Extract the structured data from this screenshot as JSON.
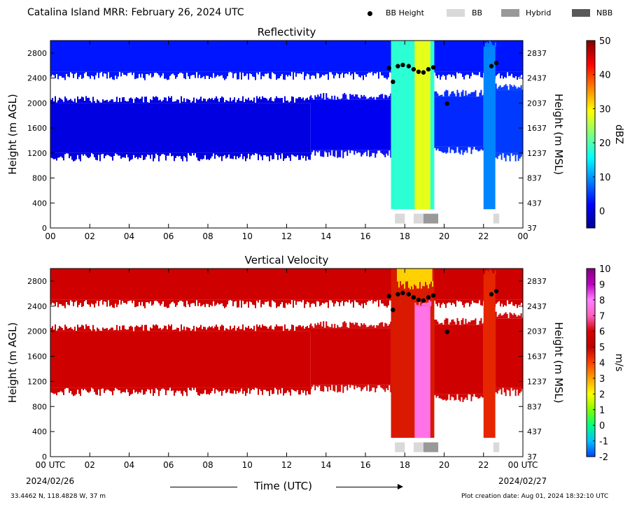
{
  "header": {
    "title": "Catalina Island MRR:  February 26, 2024 UTC",
    "legend": [
      {
        "label": "BB Height",
        "kind": "dot",
        "color": "#000000"
      },
      {
        "label": "BB",
        "kind": "box",
        "color": "#d9d9d9"
      },
      {
        "label": "Hybrid",
        "kind": "box",
        "color": "#999999"
      },
      {
        "label": "NBB",
        "kind": "box",
        "color": "#595959"
      }
    ]
  },
  "footer": {
    "location": "33.4462 N, 118.4828 W, 37 m",
    "creation": "Plot creation date: Aug 01, 2024 18:32:10 UTC",
    "time_label": "Time (UTC)",
    "date_start": "2024/02/26",
    "date_end": "2024/02/27"
  },
  "chart_data": [
    {
      "type": "heatmap",
      "title": "Reflectivity",
      "ylabel": "Height (m AGL)",
      "ylabel_right": "Height (m MSL)",
      "colorbar_label": "dBZ",
      "colorbar_range": [
        -5,
        50
      ],
      "colorbar_ticks": [
        "0",
        "10",
        "20",
        "30",
        "40",
        "50"
      ],
      "colorbar_tick_values": [
        0,
        10,
        20,
        30,
        40,
        50
      ],
      "x_range_hours": [
        0,
        24
      ],
      "xtick_labels": [
        "00",
        "02",
        "04",
        "06",
        "08",
        "10",
        "12",
        "14",
        "16",
        "18",
        "20",
        "22",
        "00"
      ],
      "ylim": [
        0,
        3000
      ],
      "yticks_left": [
        "0",
        "400",
        "800",
        "1200",
        "1600",
        "2000",
        "2400",
        "2800"
      ],
      "ytick_values": [
        0,
        400,
        800,
        1200,
        1600,
        2000,
        2400,
        2800
      ],
      "yticks_right": [
        "37",
        "437",
        "837",
        "1237",
        "1637",
        "2037",
        "2437",
        "2837"
      ],
      "colormap": [
        "#00008f",
        "#0000ff",
        "#0080ff",
        "#00ffff",
        "#80ff80",
        "#ffff00",
        "#ff8000",
        "#ff0000",
        "#800000"
      ],
      "regions": [
        {
          "x": [
            0,
            24
          ],
          "y": [
            2500,
            3000
          ],
          "value": 3
        },
        {
          "x": [
            0,
            13.2
          ],
          "y": [
            1200,
            2000
          ],
          "value": 0
        },
        {
          "x": [
            13.2,
            17.3
          ],
          "y": [
            1250,
            2050
          ],
          "value": 1
        },
        {
          "x": [
            17.3,
            19.5
          ],
          "y": [
            300,
            3000
          ],
          "value": 18
        },
        {
          "x": [
            18.5,
            19.3
          ],
          "y": [
            300,
            3000
          ],
          "value": 28
        },
        {
          "x": [
            19.5,
            22.0
          ],
          "y": [
            1300,
            2100
          ],
          "value": 4
        },
        {
          "x": [
            22.0,
            22.6
          ],
          "y": [
            300,
            2900
          ],
          "value": 9
        },
        {
          "x": [
            22.6,
            24
          ],
          "y": [
            1200,
            2200
          ],
          "value": 5
        }
      ]
    },
    {
      "type": "heatmap",
      "title": "Vertical Velocity",
      "ylabel": "Height (m AGL)",
      "ylabel_right": "Height (m MSL)",
      "colorbar_label": "m/s",
      "colorbar_range": [
        -2,
        10
      ],
      "colorbar_ticks": [
        "-2",
        "-1",
        "0",
        "1",
        "2",
        "3",
        "4",
        "5",
        "6",
        "7",
        "8",
        "9",
        "10"
      ],
      "colorbar_tick_values": [
        -2,
        -1,
        0,
        1,
        2,
        3,
        4,
        5,
        6,
        7,
        8,
        9,
        10
      ],
      "x_range_hours": [
        0,
        24
      ],
      "xtick_labels": [
        "00 UTC",
        "02",
        "04",
        "06",
        "08",
        "10",
        "12",
        "14",
        "16",
        "18",
        "20",
        "22",
        "00 UTC"
      ],
      "ylim": [
        0,
        3000
      ],
      "yticks_left": [
        "0",
        "400",
        "800",
        "1200",
        "1600",
        "2000",
        "2400",
        "2800"
      ],
      "ytick_values": [
        0,
        400,
        800,
        1200,
        1600,
        2000,
        2400,
        2800
      ],
      "yticks_right": [
        "37",
        "437",
        "837",
        "1237",
        "1637",
        "2037",
        "2437",
        "2837"
      ],
      "colormap": [
        "#0040ff",
        "#00c0ff",
        "#00ff80",
        "#80ff00",
        "#ffff00",
        "#ffa000",
        "#ff4000",
        "#c00000",
        "#d40000",
        "#ff60c0",
        "#ff80ff",
        "#c000c0",
        "#800080"
      ],
      "regions": [
        {
          "x": [
            0,
            24
          ],
          "y": [
            2500,
            3000
          ],
          "value": 5.7
        },
        {
          "x": [
            0,
            13.2
          ],
          "y": [
            1100,
            2000
          ],
          "value": 5.7
        },
        {
          "x": [
            13.2,
            17.3
          ],
          "y": [
            1150,
            2050
          ],
          "value": 5.7
        },
        {
          "x": [
            17.3,
            19.5
          ],
          "y": [
            300,
            3000
          ],
          "value": 4.6
        },
        {
          "x": [
            18.5,
            19.3
          ],
          "y": [
            300,
            2400
          ],
          "value": 7.6
        },
        {
          "x": [
            19.5,
            22.0
          ],
          "y": [
            1000,
            2100
          ],
          "value": 5.7
        },
        {
          "x": [
            22.0,
            22.6
          ],
          "y": [
            300,
            2900
          ],
          "value": 4.4
        },
        {
          "x": [
            22.6,
            24
          ],
          "y": [
            1100,
            2200
          ],
          "value": 5.7
        },
        {
          "x": [
            17.6,
            19.4
          ],
          "y": [
            2800,
            3000
          ],
          "value": 2.5
        }
      ]
    }
  ],
  "bb_height_points": [
    {
      "t": 17.2,
      "h": 2560
    },
    {
      "t": 17.4,
      "h": 2340
    },
    {
      "t": 17.65,
      "h": 2590
    },
    {
      "t": 17.9,
      "h": 2610
    },
    {
      "t": 18.2,
      "h": 2590
    },
    {
      "t": 18.45,
      "h": 2540
    },
    {
      "t": 18.7,
      "h": 2500
    },
    {
      "t": 18.95,
      "h": 2490
    },
    {
      "t": 19.2,
      "h": 2540
    },
    {
      "t": 19.45,
      "h": 2570
    },
    {
      "t": 20.15,
      "h": 1990
    },
    {
      "t": 22.4,
      "h": 2590
    },
    {
      "t": 22.65,
      "h": 2640
    }
  ],
  "bb_type_boxes": [
    {
      "t": [
        17.5,
        18.0
      ],
      "type": "BB"
    },
    {
      "t": [
        18.45,
        18.95
      ],
      "type": "BB"
    },
    {
      "t": [
        18.95,
        19.7
      ],
      "type": "Hybrid"
    },
    {
      "t": [
        22.5,
        22.8
      ],
      "type": "BB"
    }
  ]
}
